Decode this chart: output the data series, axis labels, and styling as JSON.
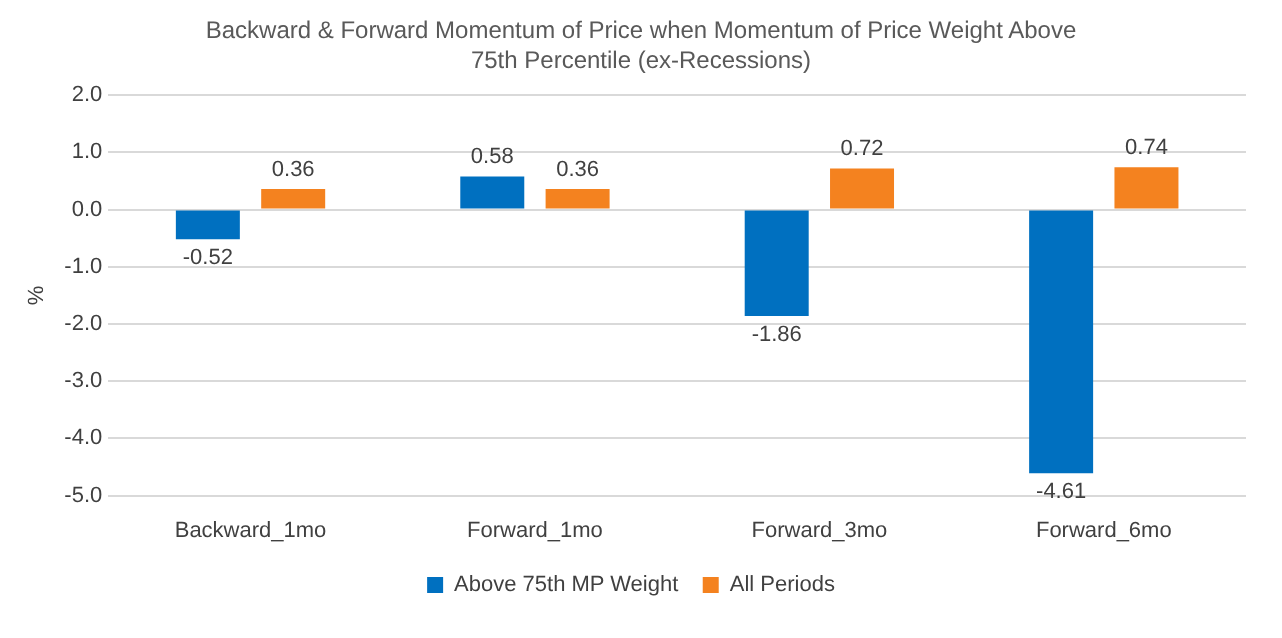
{
  "chart_data": {
    "type": "bar",
    "title": "Backward & Forward Momentum  of Price when Momentum  of Price Weight Above 75th Percentile (ex-Recessions)",
    "ylabel": "%",
    "categories": [
      "Backward_1mo",
      "Forward_1mo",
      "Forward_3mo",
      "Forward_6mo"
    ],
    "series": [
      {
        "name": "Above 75th MP Weight",
        "color": "#0070c0",
        "values": [
          -0.52,
          0.58,
          -1.86,
          -4.61
        ]
      },
      {
        "name": "All Periods",
        "color": "#f4821f",
        "values": [
          0.36,
          0.36,
          0.72,
          0.74
        ]
      }
    ],
    "ylim": [
      -5,
      2
    ],
    "yticks": [
      {
        "value": -5,
        "label": "-5.0"
      },
      {
        "value": -4,
        "label": "-4.0"
      },
      {
        "value": -3,
        "label": "-3.0"
      },
      {
        "value": -2,
        "label": "-2.0"
      },
      {
        "value": -1,
        "label": "-1.0"
      },
      {
        "value": 0,
        "label": "0.0"
      },
      {
        "value": 1,
        "label": "1.0"
      },
      {
        "value": 2,
        "label": "2.0"
      }
    ],
    "grid": "y",
    "legend": "bottom",
    "data_labels": true
  }
}
